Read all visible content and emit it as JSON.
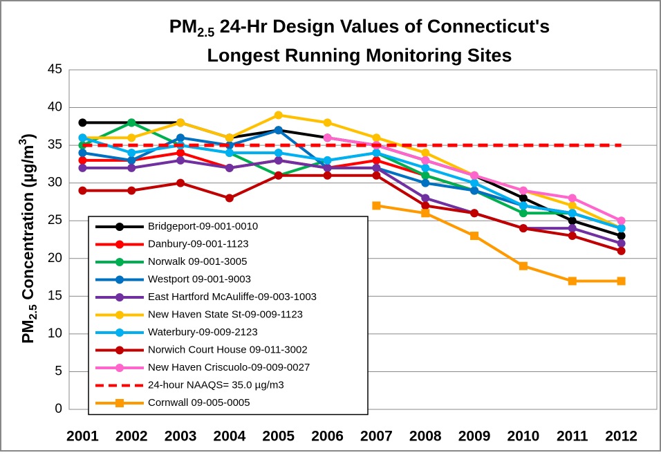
{
  "chart_data": {
    "type": "line",
    "title": [
      "PM",
      "2.5",
      " 24-Hr Design Values of Connecticut's",
      "Longest Running Monitoring Sites"
    ],
    "y_label": [
      "PM",
      "2.5",
      " Concentration (µg/m",
      "3",
      ")"
    ],
    "categories": [
      "2001",
      "2002",
      "2003",
      "2004",
      "2005",
      "2006",
      "2007",
      "2008",
      "2009",
      "2010",
      "2011",
      "2012"
    ],
    "ylim": [
      0,
      45
    ],
    "yticks": [
      0,
      5,
      10,
      15,
      20,
      25,
      30,
      35,
      40,
      45
    ],
    "grid": true,
    "legend": "lower left",
    "series": [
      {
        "name": "Bridgeport-09-001-0010",
        "color": "#000000",
        "marker": "circle",
        "values": [
          38,
          38,
          38,
          36,
          37,
          36,
          35,
          33,
          31,
          28,
          25,
          23
        ]
      },
      {
        "name": "Danbury-09-001-1123",
        "color": "#ff0000",
        "marker": "circle",
        "values": [
          33,
          33,
          34,
          32,
          33,
          32,
          33,
          31,
          29,
          27,
          26,
          24
        ]
      },
      {
        "name": "Norwalk 09-001-3005",
        "color": "#00b050",
        "marker": "circle",
        "values": [
          35,
          38,
          35,
          34,
          31,
          33,
          34,
          31,
          29,
          26,
          26,
          24
        ]
      },
      {
        "name": "Westport 09-001-9003",
        "color": "#0070c0",
        "marker": "circle",
        "values": [
          34,
          33,
          36,
          35,
          37,
          32,
          32,
          30,
          29,
          27,
          26,
          24
        ]
      },
      {
        "name": "East Hartford McAuliffe-09-003-1003",
        "color": "#7030a0",
        "marker": "circle",
        "values": [
          32,
          32,
          33,
          32,
          33,
          32,
          32,
          28,
          26,
          24,
          24,
          22
        ]
      },
      {
        "name": "New Haven State St-09-009-1123",
        "color": "#ffc000",
        "marker": "circle",
        "values": [
          36,
          36,
          38,
          36,
          39,
          38,
          36,
          34,
          31,
          29,
          27,
          24
        ]
      },
      {
        "name": "Waterbury-09-009-2123",
        "color": "#00b0f0",
        "marker": "circle",
        "values": [
          36,
          34,
          35,
          34,
          34,
          33,
          34,
          32,
          30,
          27,
          26,
          24
        ]
      },
      {
        "name": "Norwich Court House 09-011-3002",
        "color": "#c00000",
        "marker": "circle",
        "values": [
          29,
          29,
          30,
          28,
          31,
          31,
          31,
          27,
          26,
          24,
          23,
          21
        ]
      },
      {
        "name": "New Haven Criscuolo-09-009-0027",
        "color": "#ff66cc",
        "marker": "circle",
        "values": [
          null,
          null,
          null,
          null,
          null,
          36,
          35,
          33,
          31,
          29,
          28,
          25
        ]
      },
      {
        "name": "24-hour NAAQS= 35.0 µg/m3",
        "color": "#ff0000",
        "marker": "none",
        "dashed": true,
        "values": [
          35,
          35,
          35,
          35,
          35,
          35,
          35,
          35,
          35,
          35,
          35,
          35
        ]
      },
      {
        "name": "Cornwall 09-005-0005",
        "color": "#ff9900",
        "marker": "square",
        "values": [
          null,
          null,
          null,
          null,
          null,
          null,
          27,
          26,
          23,
          19,
          17,
          17
        ]
      }
    ]
  }
}
